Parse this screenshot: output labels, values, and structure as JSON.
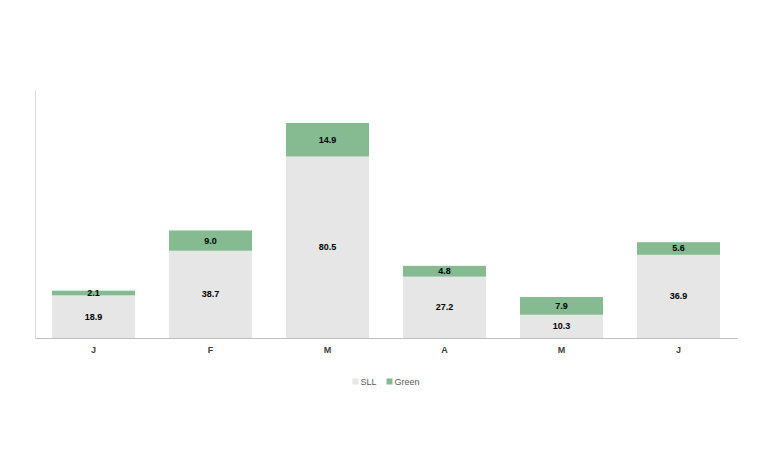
{
  "chart_data": {
    "type": "bar",
    "stacked": true,
    "data_labels": true,
    "tick_labels": "x",
    "legend": "bottom",
    "grid": false,
    "categories": [
      "J",
      "F",
      "M",
      "A",
      "M",
      "J"
    ],
    "series": [
      {
        "name": "SLL",
        "color": "#e6e6e6",
        "values": [
          18.9,
          38.7,
          80.5,
          27.2,
          10.3,
          36.9
        ],
        "value_labels": [
          "18.9",
          "38.7",
          "80.5",
          "27.2",
          "10.3",
          "36.9"
        ]
      },
      {
        "name": "Green",
        "color": "#86bb91",
        "values": [
          2.1,
          9.0,
          14.9,
          4.8,
          7.9,
          5.6
        ],
        "value_labels": [
          "2.1",
          "9.0",
          "14.9",
          "4.8",
          "7.9",
          "5.6"
        ]
      }
    ],
    "ylim": [
      0,
      110
    ],
    "yticks": []
  }
}
